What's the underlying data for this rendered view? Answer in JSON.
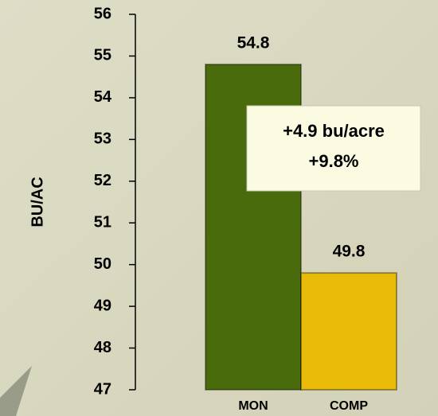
{
  "chart_data": {
    "type": "bar",
    "y_label": "BU/AC",
    "categories": [
      "MON",
      "COMP"
    ],
    "values": [
      54.8,
      49.8
    ],
    "colors": [
      "#4a6b0c",
      "#e8bb08"
    ],
    "ylim": [
      47,
      56
    ],
    "yticks": [
      47,
      48,
      49,
      50,
      51,
      52,
      53,
      54,
      55,
      56
    ],
    "annotations": [
      "+4.9 bu/acre",
      "+9.8%"
    ]
  }
}
